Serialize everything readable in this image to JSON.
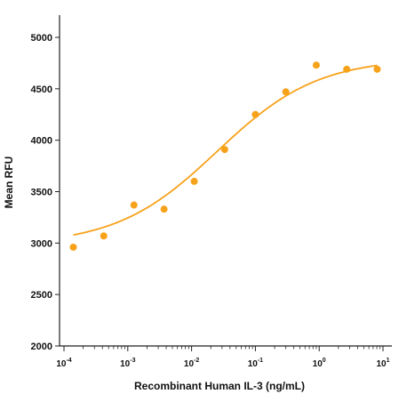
{
  "chart_data": {
    "type": "scatter",
    "title": "",
    "xlabel": "Recombinant Human IL-3 (ng/mL)",
    "ylabel": "Mean RFU",
    "x_scale": "log",
    "xlim": [
      0.0001,
      10
    ],
    "ylim": [
      2000,
      5000
    ],
    "grid": false,
    "y_ticks": [
      "2000",
      "2500",
      "3000",
      "3500",
      "4000",
      "4500",
      "5000"
    ],
    "x_ticks": [
      {
        "base": "10",
        "exp": "-4",
        "value": 0.0001
      },
      {
        "base": "10",
        "exp": "-3",
        "value": 0.001
      },
      {
        "base": "10",
        "exp": "-2",
        "value": 0.01
      },
      {
        "base": "10",
        "exp": "-1",
        "value": 0.1
      },
      {
        "base": "10",
        "exp": "0",
        "value": 1
      },
      {
        "base": "10",
        "exp": "1",
        "value": 10
      }
    ],
    "series": [
      {
        "kind": "points",
        "color": "#F7A21B",
        "x": [
          0.00014,
          0.00042,
          0.00125,
          0.0037,
          0.011,
          0.033,
          0.1,
          0.3,
          0.9,
          2.7,
          8.1
        ],
        "y": [
          2960,
          3070,
          3370,
          3330,
          3600,
          3910,
          4250,
          4470,
          4730,
          4690,
          4690
        ]
      },
      {
        "kind": "fit-curve",
        "model": "4PL",
        "color": "#F7A21B",
        "bottom": 2980,
        "top": 4800,
        "ec50": 0.025,
        "hill": 0.55,
        "x_range": [
          0.00014,
          8.1
        ]
      }
    ]
  }
}
